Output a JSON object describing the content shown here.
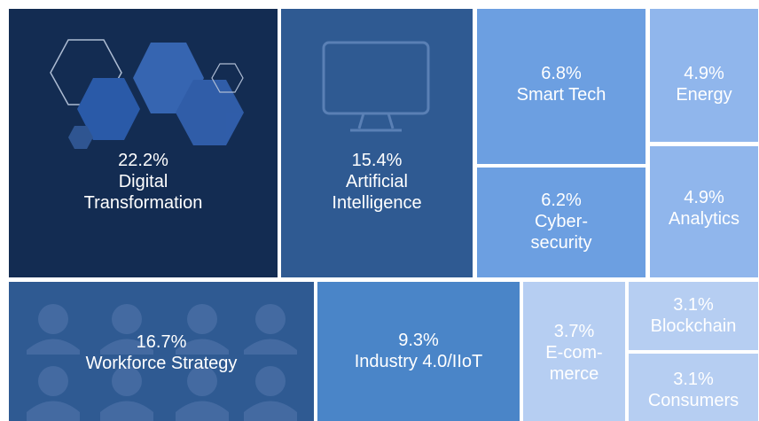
{
  "chart_data": {
    "type": "treemap",
    "categories": [
      "Digital\nTransformation",
      "Artificial\nIntelligence",
      "Smart Tech",
      "Energy",
      "Cyber-\nsecurity",
      "Analytics",
      "Workforce Strategy",
      "Industry 4.0/IIoT",
      "E-com-\nmerce",
      "Blockchain",
      "Consumers"
    ],
    "values": [
      22.2,
      15.4,
      6.8,
      4.9,
      6.2,
      4.9,
      16.7,
      9.3,
      3.7,
      3.1,
      3.1
    ],
    "value_labels": [
      "22.2%",
      "15.4%",
      "6.8%",
      "4.9%",
      "6.2%",
      "4.9%",
      "16.7%",
      "9.3%",
      "3.7%",
      "3.1%",
      "3.1%"
    ],
    "colors": [
      "#132c52",
      "#2f5a92",
      "#6c9fe1",
      "#90b6ec",
      "#6c9fe1",
      "#90b6ec",
      "#2f5a92",
      "#4a85c8",
      "#b6cef2",
      "#b6cef2",
      "#b6cef2"
    ]
  }
}
